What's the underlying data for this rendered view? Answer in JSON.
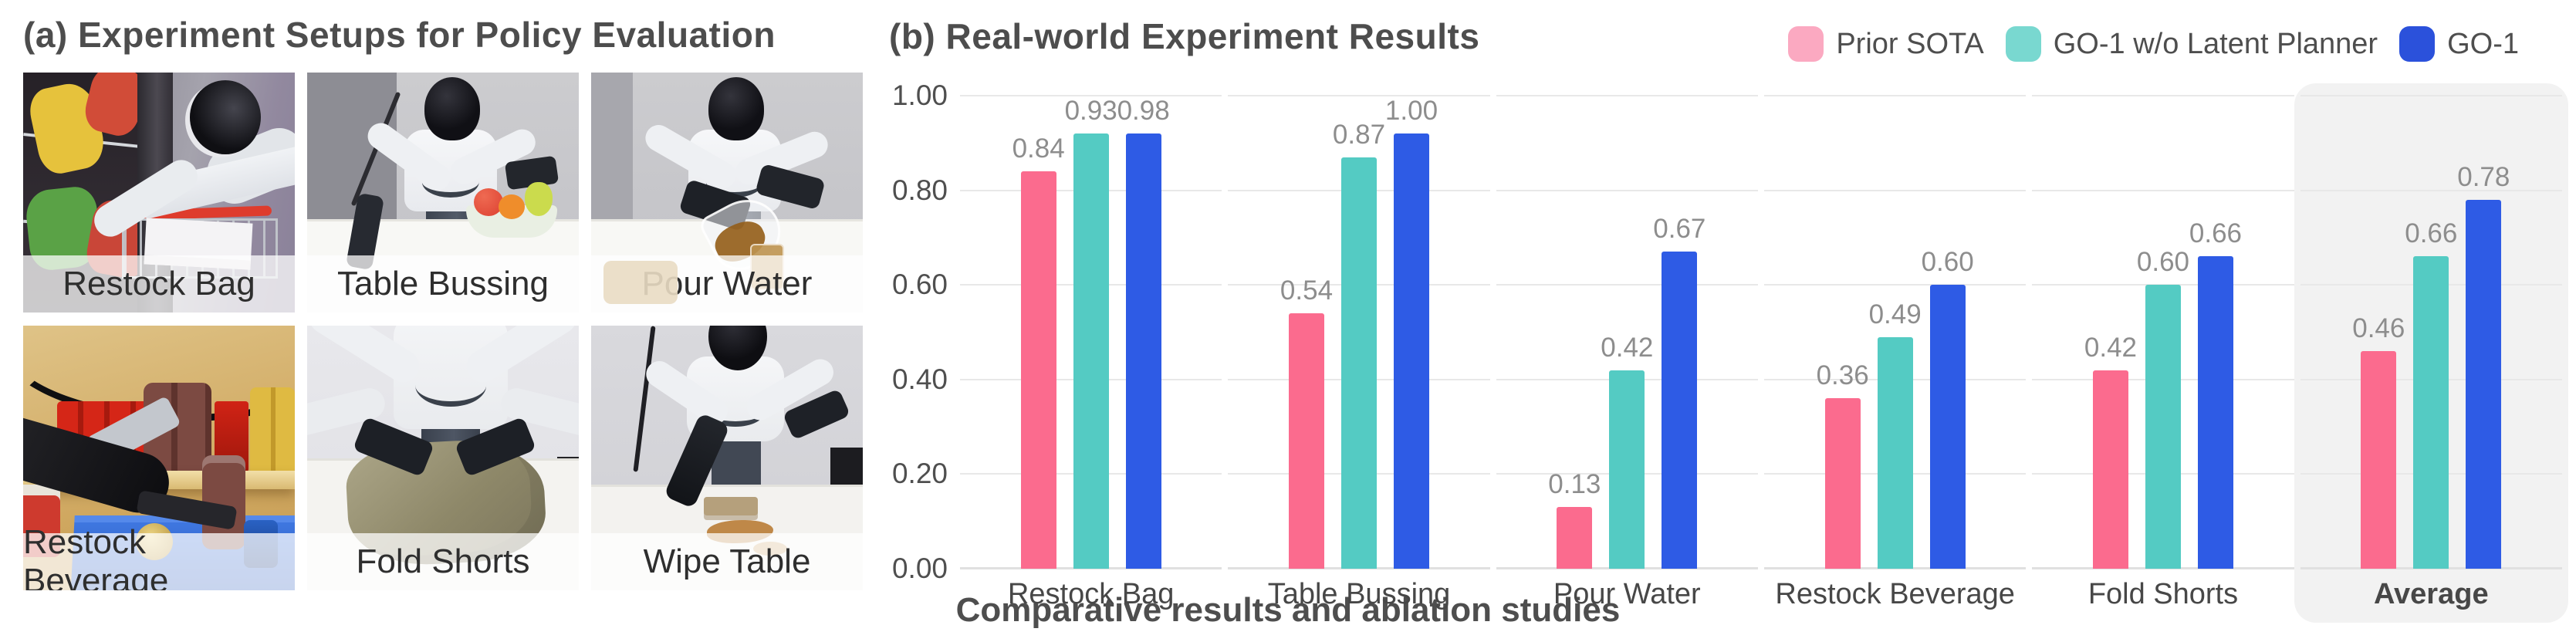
{
  "figure": {
    "panel_a": {
      "title": "(a) Experiment Setups for Policy Evaluation",
      "tiles": [
        {
          "label": "Restock Bag"
        },
        {
          "label": "Table Bussing"
        },
        {
          "label": "Pour Water"
        },
        {
          "label": "Restock Beverage"
        },
        {
          "label": "Fold Shorts"
        },
        {
          "label": "Wipe Table"
        }
      ]
    },
    "panel_b": {
      "title": "(b) Real-world Experiment Results"
    },
    "caption": "Comparative results and ablation studies"
  },
  "chart_data": {
    "type": "bar",
    "title": "(b) Real-world Experiment Results",
    "categories": [
      "Restock Bag",
      "Table Bussing",
      "Pour Water",
      "Restock Beverage",
      "Fold Shorts",
      "Average"
    ],
    "series": [
      {
        "name": "Prior SOTA",
        "color": "#FB6B8E",
        "legend_color": "#FBA9C1",
        "values": [
          0.84,
          0.54,
          0.13,
          0.36,
          0.42,
          0.46
        ]
      },
      {
        "name": "GO-1 w/o Latent Planner",
        "color": "#54CBC3",
        "legend_color": "#79D8D0",
        "values": [
          0.93,
          0.87,
          0.42,
          0.49,
          0.6,
          0.66
        ]
      },
      {
        "name": "GO-1",
        "color": "#2E5BE5",
        "legend_color": "#2B51DB",
        "values": [
          0.98,
          1.0,
          0.67,
          0.6,
          0.66,
          0.78
        ]
      }
    ],
    "yticks": [
      "1.00",
      "0.80",
      "0.60",
      "0.40",
      "0.20",
      "0.00"
    ],
    "ylim": [
      0,
      1
    ],
    "grid": true,
    "legend_position": "top-right",
    "highlight_category": "Average",
    "value_label_decimals": 2,
    "xlabel": "",
    "ylabel": ""
  }
}
